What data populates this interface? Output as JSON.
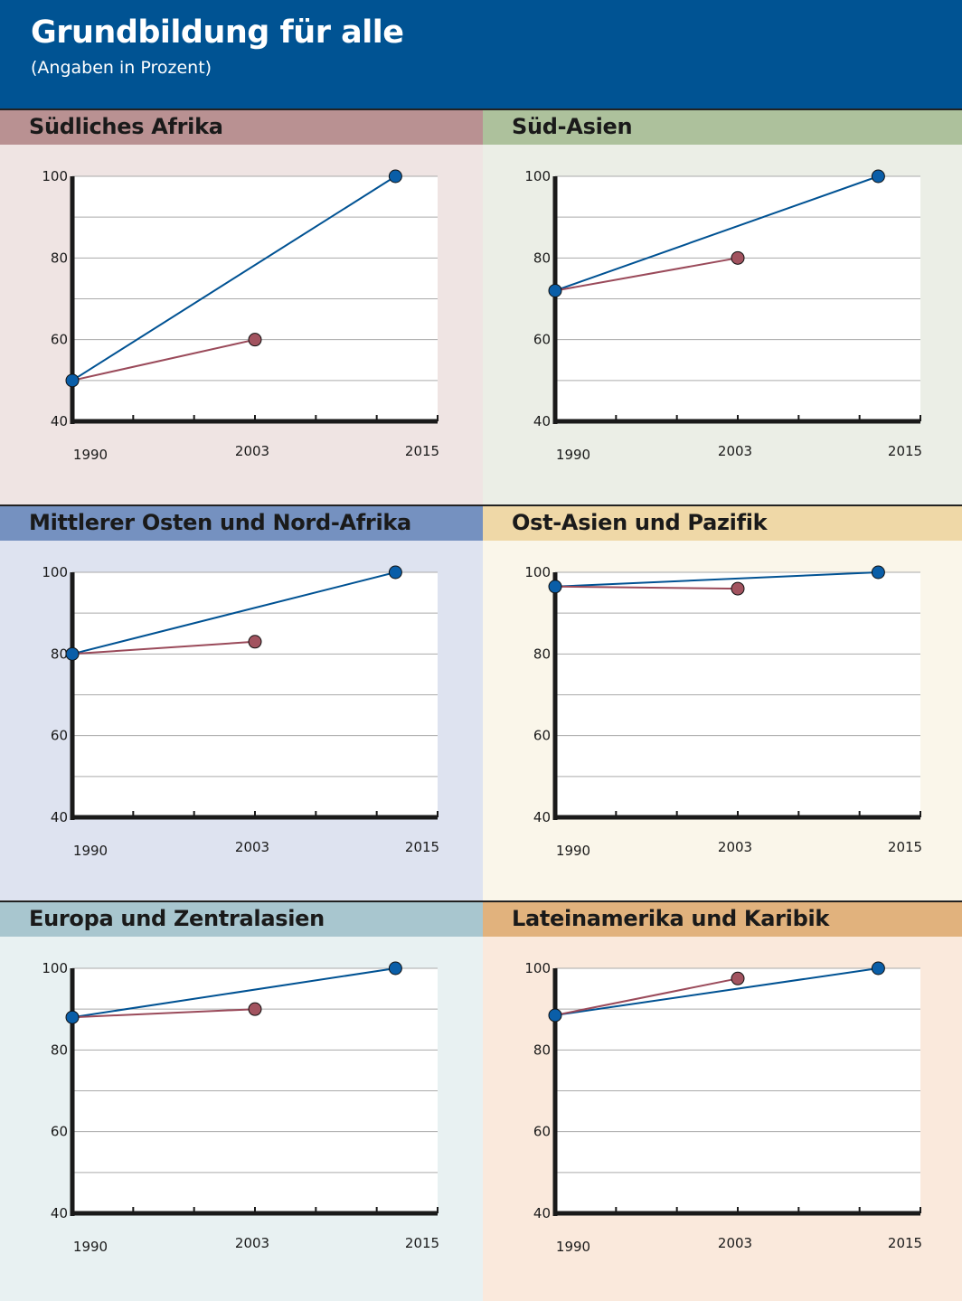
{
  "header": {
    "title": "Grundbildung für alle",
    "subtitle": "(Angaben in Prozent)",
    "background": "#005393"
  },
  "colors": {
    "target_line": "#005293",
    "actual_line": "#9a4a5a",
    "target_dot": "#0a5ea8",
    "actual_dot": "#a2535f",
    "axis": "#1a1a1a",
    "grid": "#aaaaaa"
  },
  "chart_data": [
    {
      "type": "line",
      "title": "Südliches Afrika",
      "bar_color": "#b99192",
      "bg_color": "#efe4e3",
      "x_ticks": [
        "1990",
        "2003",
        "2015"
      ],
      "ylim": [
        40,
        100
      ],
      "y_ticks": [
        40,
        60,
        80,
        100
      ],
      "grid": true,
      "series": [
        {
          "points": [
            [
              1990,
              50
            ],
            [
              2013,
              100
            ]
          ],
          "color": "#005293",
          "marker_color": "#0a5ea8"
        },
        {
          "points": [
            [
              1990,
              50
            ],
            [
              2003,
              60
            ]
          ],
          "color": "#9a4a5a",
          "marker_color": "#a2535f"
        }
      ]
    },
    {
      "type": "line",
      "title": "Süd-Asien",
      "bar_color": "#adc19c",
      "bg_color": "#ebeee6",
      "x_ticks": [
        "1990",
        "2003",
        "2015"
      ],
      "ylim": [
        40,
        100
      ],
      "y_ticks": [
        40,
        60,
        80,
        100
      ],
      "grid": true,
      "series": [
        {
          "points": [
            [
              1990,
              72
            ],
            [
              2013,
              100
            ]
          ],
          "color": "#005293",
          "marker_color": "#0a5ea8"
        },
        {
          "points": [
            [
              1990,
              72
            ],
            [
              2003,
              80
            ]
          ],
          "color": "#9a4a5a",
          "marker_color": "#a2535f"
        }
      ]
    },
    {
      "type": "line",
      "title": "Mittlerer Osten und Nord-Afrika",
      "bar_color": "#7591c0",
      "bg_color": "#dee3f0",
      "x_ticks": [
        "1990",
        "2003",
        "2015"
      ],
      "ylim": [
        40,
        100
      ],
      "y_ticks": [
        40,
        60,
        80,
        100
      ],
      "grid": true,
      "series": [
        {
          "points": [
            [
              1990,
              80
            ],
            [
              2013,
              100
            ]
          ],
          "color": "#005293",
          "marker_color": "#0a5ea8"
        },
        {
          "points": [
            [
              1990,
              80
            ],
            [
              2003,
              83
            ]
          ],
          "color": "#9a4a5a",
          "marker_color": "#a2535f"
        }
      ]
    },
    {
      "type": "line",
      "title": "Ost-Asien und Pazifik",
      "bar_color": "#efd8a7",
      "bg_color": "#faf6ea",
      "x_ticks": [
        "1990",
        "2003",
        "2015"
      ],
      "ylim": [
        40,
        100
      ],
      "y_ticks": [
        40,
        60,
        80,
        100
      ],
      "grid": true,
      "series": [
        {
          "points": [
            [
              1990,
              96.5
            ],
            [
              2013,
              100
            ]
          ],
          "color": "#005293",
          "marker_color": "#0a5ea8"
        },
        {
          "points": [
            [
              1990,
              96.5
            ],
            [
              2003,
              96
            ]
          ],
          "color": "#9a4a5a",
          "marker_color": "#a2535f"
        }
      ]
    },
    {
      "type": "line",
      "title": "Europa und Zentralasien",
      "bar_color": "#a8c6cf",
      "bg_color": "#e8f1f2",
      "x_ticks": [
        "1990",
        "2003",
        "2015"
      ],
      "ylim": [
        40,
        100
      ],
      "y_ticks": [
        40,
        60,
        80,
        100
      ],
      "grid": true,
      "series": [
        {
          "points": [
            [
              1990,
              88
            ],
            [
              2013,
              100
            ]
          ],
          "color": "#005293",
          "marker_color": "#0a5ea8"
        },
        {
          "points": [
            [
              1990,
              88
            ],
            [
              2003,
              90
            ]
          ],
          "color": "#9a4a5a",
          "marker_color": "#a2535f"
        }
      ]
    },
    {
      "type": "line",
      "title": "Lateinamerika und Karibik",
      "bar_color": "#e1b27d",
      "bg_color": "#fae9dc",
      "x_ticks": [
        "1990",
        "2003",
        "2015"
      ],
      "ylim": [
        40,
        100
      ],
      "y_ticks": [
        40,
        60,
        80,
        100
      ],
      "grid": true,
      "series": [
        {
          "points": [
            [
              1990,
              88.5
            ],
            [
              2013,
              100
            ]
          ],
          "color": "#005293",
          "marker_color": "#0a5ea8"
        },
        {
          "points": [
            [
              1990,
              88.5
            ],
            [
              2003,
              97.5
            ]
          ],
          "color": "#9a4a5a",
          "marker_color": "#a2535f"
        }
      ]
    }
  ]
}
